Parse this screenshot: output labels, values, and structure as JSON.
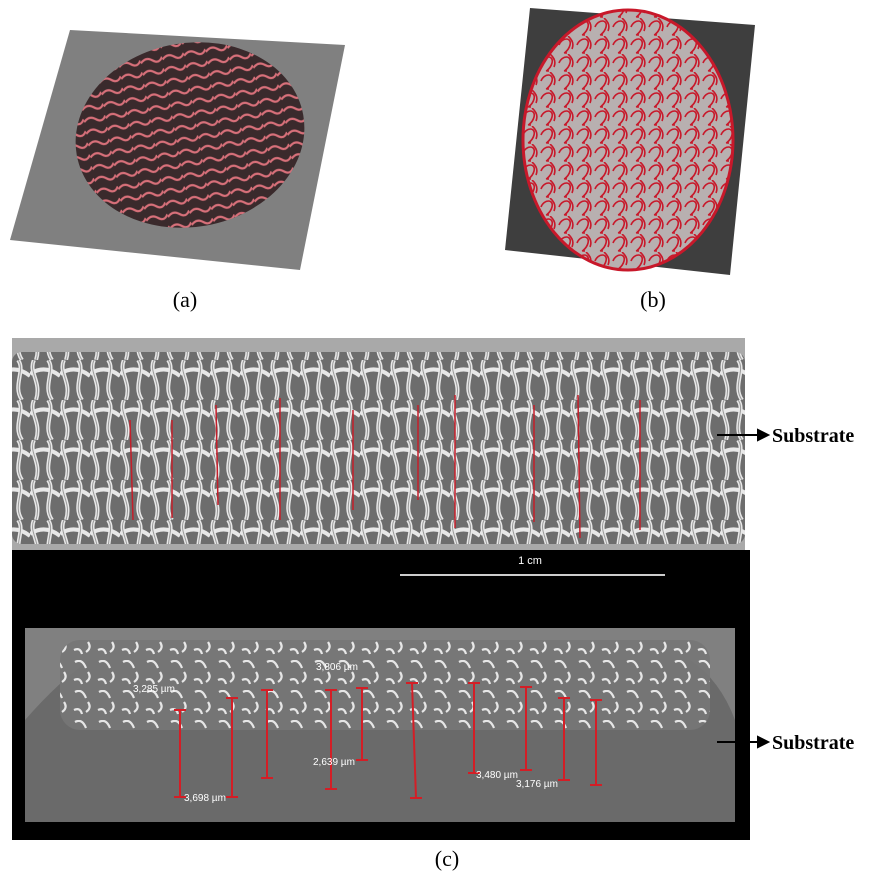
{
  "panels": {
    "a": {
      "label": "(a)"
    },
    "b": {
      "label": "(b)"
    },
    "c": {
      "label": "(c)",
      "top_annotation": "Substrate",
      "bottom_annotation": "Substrate",
      "scale_bar": "1 cm",
      "measurements": [
        "3,285 µm",
        "3,806 µm",
        "3,698 µm",
        "2,639 µm",
        "3,480 µm",
        "3,176 µm"
      ]
    }
  }
}
